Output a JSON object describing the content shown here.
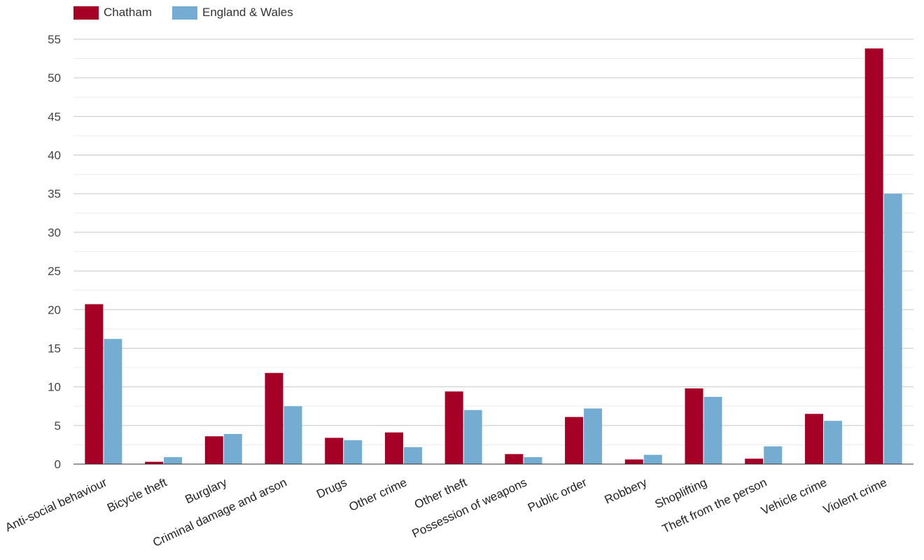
{
  "chart_data": {
    "type": "bar",
    "title": "",
    "xlabel": "",
    "ylabel": "",
    "ylim": [
      0,
      55
    ],
    "yticks": [
      0,
      5,
      10,
      15,
      20,
      25,
      30,
      35,
      40,
      45,
      50,
      55
    ],
    "grid": true,
    "legend_position": "top-left",
    "categories": [
      "Anti-social behaviour",
      "Bicycle theft",
      "Burglary",
      "Criminal damage and arson",
      "Drugs",
      "Other crime",
      "Other theft",
      "Possession of weapons",
      "Public order",
      "Robbery",
      "Shoplifting",
      "Theft from the person",
      "Vehicle crime",
      "Violent crime"
    ],
    "series": [
      {
        "name": "Chatham",
        "color": "#a50026",
        "values": [
          20.7,
          0.3,
          3.6,
          11.8,
          3.4,
          4.1,
          9.4,
          1.3,
          6.1,
          0.6,
          9.8,
          0.7,
          6.5,
          53.8
        ]
      },
      {
        "name": "England & Wales",
        "color": "#74add1",
        "values": [
          16.2,
          0.9,
          3.9,
          7.5,
          3.1,
          2.2,
          7.0,
          0.9,
          7.2,
          1.2,
          8.7,
          2.3,
          5.6,
          35.0
        ]
      }
    ]
  }
}
